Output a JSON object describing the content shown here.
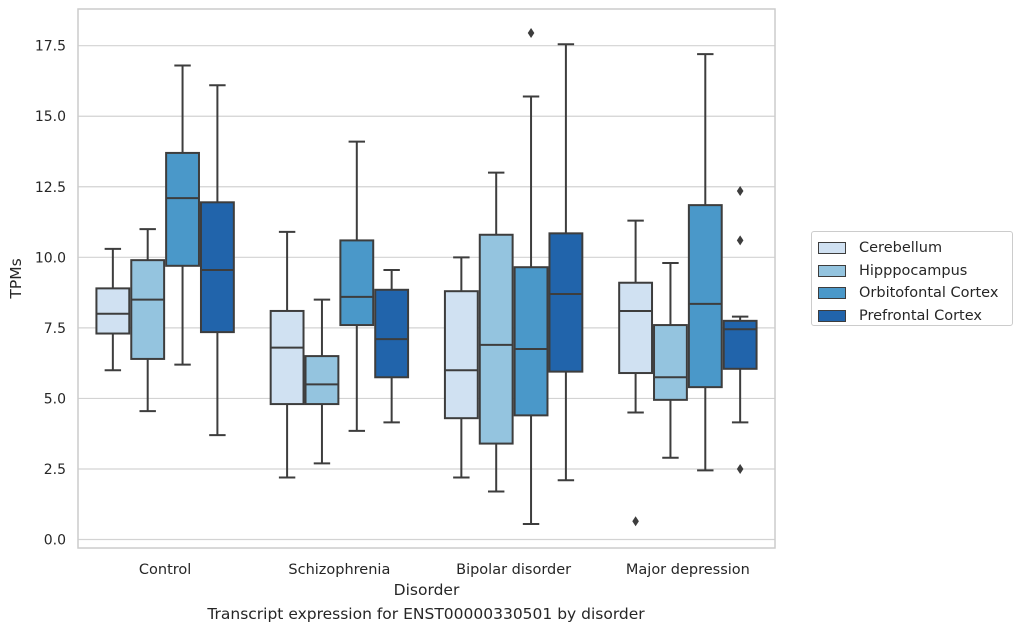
{
  "chart_data": {
    "type": "box",
    "xlabel": "Disorder",
    "ylabel": "TPMs",
    "caption": "Transcript expression for ENST00000330501 by disorder",
    "ylim": [
      -0.3,
      18.8
    ],
    "yticks": [
      "0.0",
      "2.5",
      "5.0",
      "7.5",
      "10.0",
      "12.5",
      "15.0",
      "17.5"
    ],
    "grid": "horizontal",
    "legend_position": "right",
    "categories": [
      "Control",
      "Schizophrenia",
      "Bipolar disorder",
      "Major depression"
    ],
    "series": [
      {
        "name": "Cerebellum",
        "color": "#d0e1f2",
        "boxes": [
          {
            "whisker_low": 6.0,
            "q1": 7.3,
            "median": 8.0,
            "q3": 8.9,
            "whisker_high": 10.3,
            "outliers": []
          },
          {
            "whisker_low": 2.2,
            "q1": 4.8,
            "median": 6.8,
            "q3": 8.1,
            "whisker_high": 10.9,
            "outliers": []
          },
          {
            "whisker_low": 2.2,
            "q1": 4.3,
            "median": 6.0,
            "q3": 8.8,
            "whisker_high": 10.0,
            "outliers": []
          },
          {
            "whisker_low": 4.5,
            "q1": 5.9,
            "median": 8.1,
            "q3": 9.1,
            "whisker_high": 11.3,
            "outliers": [
              0.65
            ]
          }
        ]
      },
      {
        "name": "Hipppocampus",
        "color": "#94c4df",
        "boxes": [
          {
            "whisker_low": 4.55,
            "q1": 6.4,
            "median": 8.5,
            "q3": 9.9,
            "whisker_high": 11.0,
            "outliers": []
          },
          {
            "whisker_low": 2.7,
            "q1": 4.8,
            "median": 5.5,
            "q3": 6.5,
            "whisker_high": 8.5,
            "outliers": []
          },
          {
            "whisker_low": 1.7,
            "q1": 3.4,
            "median": 6.9,
            "q3": 10.8,
            "whisker_high": 13.0,
            "outliers": []
          },
          {
            "whisker_low": 2.9,
            "q1": 4.95,
            "median": 5.75,
            "q3": 7.6,
            "whisker_high": 9.8,
            "outliers": []
          }
        ]
      },
      {
        "name": "Orbitofontal Cortex",
        "color": "#4a98c9",
        "boxes": [
          {
            "whisker_low": 6.2,
            "q1": 9.7,
            "median": 12.1,
            "q3": 13.7,
            "whisker_high": 16.8,
            "outliers": []
          },
          {
            "whisker_low": 3.85,
            "q1": 7.6,
            "median": 8.6,
            "q3": 10.6,
            "whisker_high": 14.1,
            "outliers": []
          },
          {
            "whisker_low": 0.55,
            "q1": 4.4,
            "median": 6.75,
            "q3": 9.65,
            "whisker_high": 15.7,
            "outliers": [
              17.95
            ]
          },
          {
            "whisker_low": 2.45,
            "q1": 5.4,
            "median": 8.35,
            "q3": 11.85,
            "whisker_high": 17.2,
            "outliers": []
          }
        ]
      },
      {
        "name": "Prefrontal Cortex",
        "color": "#2164ab",
        "boxes": [
          {
            "whisker_low": 3.7,
            "q1": 7.35,
            "median": 9.55,
            "q3": 11.95,
            "whisker_high": 16.1,
            "outliers": []
          },
          {
            "whisker_low": 4.15,
            "q1": 5.75,
            "median": 7.1,
            "q3": 8.85,
            "whisker_high": 9.55,
            "outliers": []
          },
          {
            "whisker_low": 2.1,
            "q1": 5.95,
            "median": 8.7,
            "q3": 10.85,
            "whisker_high": 17.55,
            "outliers": []
          },
          {
            "whisker_low": 4.15,
            "q1": 6.05,
            "median": 7.45,
            "q3": 7.75,
            "whisker_high": 7.9,
            "outliers": [
              2.5,
              10.6,
              12.35
            ]
          }
        ]
      }
    ]
  }
}
